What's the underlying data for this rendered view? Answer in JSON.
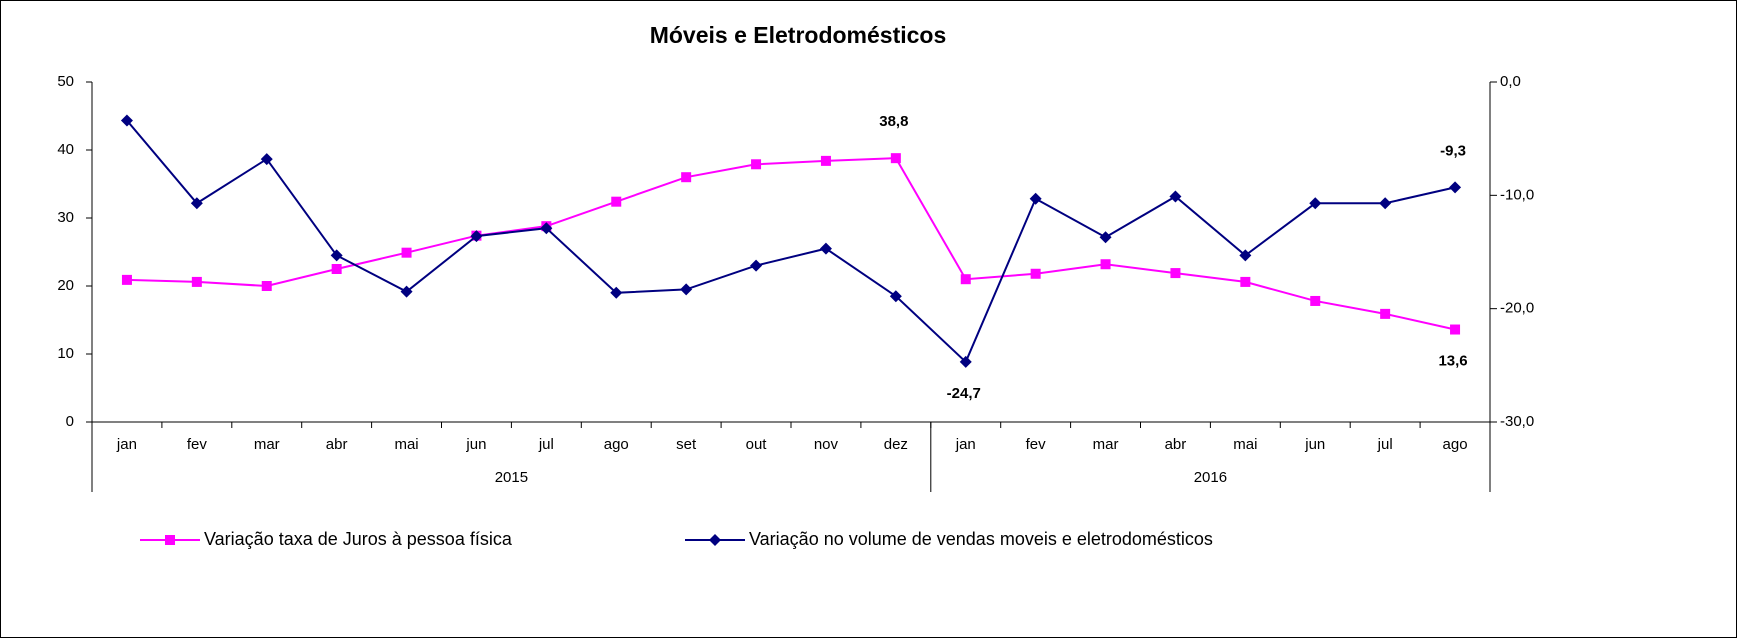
{
  "chart_data": {
    "type": "line",
    "title": "Móveis e Eletrodomésticos",
    "categories": [
      "jan",
      "fev",
      "mar",
      "abr",
      "mai",
      "jun",
      "jul",
      "ago",
      "set",
      "out",
      "nov",
      "dez",
      "jan",
      "fev",
      "mar",
      "abr",
      "mai",
      "jun",
      "jul",
      "ago"
    ],
    "year_groups": [
      {
        "label": "2015",
        "count": 12
      },
      {
        "label": "2016",
        "count": 8
      }
    ],
    "ylim": [
      0,
      50
    ],
    "yticks": [
      0,
      10,
      20,
      30,
      40,
      50
    ],
    "y2lim": [
      -30,
      0
    ],
    "y2ticks": [
      {
        "value": -30,
        "label": "-30,0"
      },
      {
        "value": -20,
        "label": "-20,0"
      },
      {
        "value": -10,
        "label": "-10,0"
      },
      {
        "value": 0,
        "label": "0,0"
      }
    ],
    "legend": "bottom",
    "series": [
      {
        "name": "Variação taxa de Juros à pessoa física",
        "color": "#ff00ff",
        "marker": "square",
        "values": [
          20.9,
          20.6,
          20.0,
          22.5,
          24.9,
          27.4,
          28.8,
          32.4,
          36.0,
          37.9,
          38.4,
          38.8,
          21.0,
          21.8,
          23.2,
          21.9,
          20.6,
          17.8,
          15.9,
          13.6
        ],
        "value_labels": [
          null,
          null,
          null,
          null,
          null,
          null,
          null,
          null,
          null,
          null,
          null,
          "38,8",
          null,
          null,
          null,
          null,
          null,
          null,
          null,
          "13,6"
        ]
      },
      {
        "name": "Variação no volume de vendas moveis e eletrodomésticos",
        "color": "#000080",
        "marker": "diamond",
        "axis": "y2",
        "values": [
          -3.4,
          -10.7,
          -6.8,
          -15.3,
          -18.5,
          -13.6,
          -12.9,
          -18.6,
          -18.3,
          -16.2,
          -14.7,
          -18.9,
          -24.7,
          -10.3,
          -13.7,
          -10.1,
          -15.3,
          -10.7,
          -10.7,
          -9.3
        ],
        "value_labels": [
          null,
          null,
          null,
          null,
          null,
          null,
          null,
          null,
          null,
          null,
          null,
          null,
          "-24,7",
          null,
          null,
          null,
          null,
          null,
          null,
          "-9,3"
        ]
      }
    ]
  }
}
